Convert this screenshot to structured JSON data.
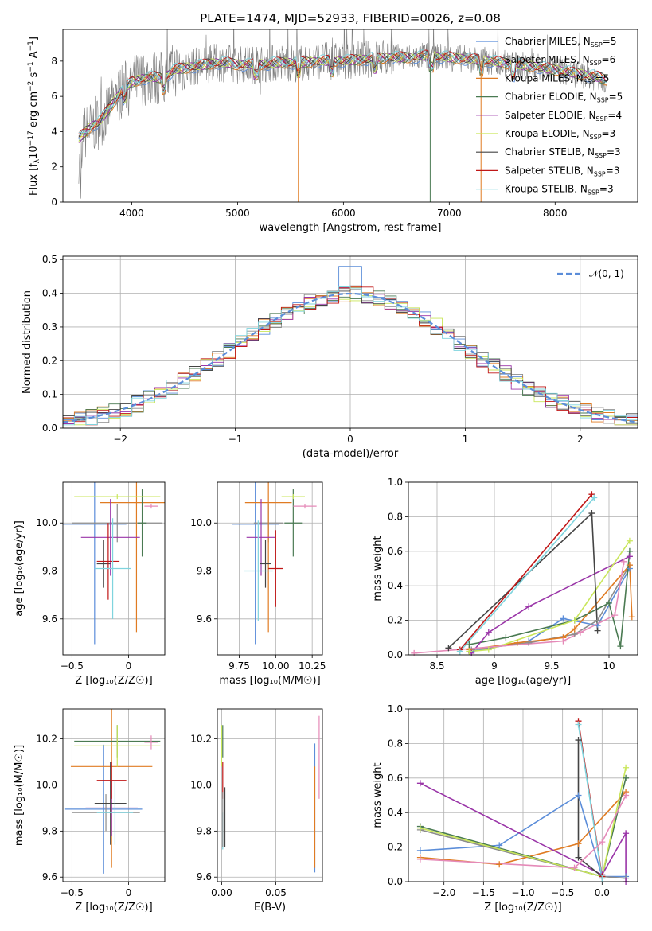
{
  "colors": {
    "Chabrier MILES": "#5b8dd9",
    "Salpeter MILES": "#8c8c8c",
    "Kroupa MILES": "#e07b22",
    "Chabrier ELODIE": "#4a7a52",
    "Salpeter ELODIE": "#9a35a8",
    "Kroupa ELODIE": "#c9e65a",
    "Chabrier STELIB": "#444444",
    "Salpeter STELIB": "#c01717",
    "Kroupa STELIB": "#7fd4de",
    "extra_pink": "#e58ab8",
    "spectrum_gray": "#7f7f7f",
    "gauss": "#5b8dd9"
  },
  "chart_data": [
    {
      "id": "spectrum",
      "type": "line",
      "title": "PLATE=1474, MJD=52933, FIBERID=0026, z=0.08",
      "xlabel": "wavelength [Angstrom, rest frame]",
      "ylabel_parts": [
        "Flux [f",
        "λ",
        "10",
        "−17",
        " erg cm",
        "−2",
        " s",
        "−1",
        " A",
        "−1",
        "]"
      ],
      "xlim": [
        3350,
        8780
      ],
      "ylim": [
        0,
        9.8
      ],
      "xticks": [
        4000,
        5000,
        6000,
        7000,
        8000
      ],
      "yticks": [
        0,
        2,
        4,
        6,
        8
      ],
      "legend": [
        {
          "name": "Chabrier MILES",
          "nssp": "5"
        },
        {
          "name": "Salpeter MILES",
          "nssp": "6"
        },
        {
          "name": "Kroupa MILES",
          "nssp": "5"
        },
        {
          "name": "Chabrier ELODIE",
          "nssp": "5"
        },
        {
          "name": "Salpeter ELODIE",
          "nssp": "4"
        },
        {
          "name": "Kroupa ELODIE",
          "nssp": "3"
        },
        {
          "name": "Chabrier STELIB",
          "nssp": "3"
        },
        {
          "name": "Salpeter STELIB",
          "nssp": "3"
        },
        {
          "name": "Kroupa STELIB",
          "nssp": "3"
        }
      ],
      "legend_nssp_label": "N",
      "legend_nssp_sub": "SSP",
      "model_x": [
        3500,
        3600,
        3700,
        3800,
        3900,
        4000,
        4100,
        4200,
        4300,
        4400,
        4500,
        4600,
        4700,
        4800,
        4900,
        5000,
        5200,
        5400,
        5600,
        5800,
        6000,
        6200,
        6400,
        6600,
        6800,
        7000,
        7200,
        7400,
        7600,
        7800,
        8000,
        8200,
        8400,
        8500
      ],
      "model_y": [
        3.6,
        4.2,
        4.6,
        5.4,
        6.3,
        6.8,
        7.0,
        7.1,
        7.0,
        7.5,
        7.6,
        7.7,
        7.8,
        7.9,
        7.9,
        7.8,
        7.8,
        7.9,
        7.9,
        8.0,
        8.0,
        8.1,
        8.2,
        8.2,
        8.3,
        8.2,
        8.1,
        8.0,
        7.8,
        7.7,
        7.5,
        7.3,
        7.1,
        6.9
      ],
      "dips": [
        3933,
        4300,
        5173,
        5575,
        5890,
        6300,
        6830,
        7300,
        7600
      ],
      "orange_drop": 5575
    },
    {
      "id": "residuals",
      "type": "line",
      "xlabel": "(data-model)/error",
      "ylabel": "Normed distribution",
      "xlim": [
        -2.5,
        2.5
      ],
      "ylim": [
        0,
        0.51
      ],
      "xticks": [
        -2,
        -1,
        0,
        1,
        2
      ],
      "yticks": [
        0.0,
        0.1,
        0.2,
        0.3,
        0.4,
        0.5
      ],
      "legend": "𝒩(0, 1)",
      "grid": true,
      "bin_width": 0.1,
      "peak_value": 0.48
    },
    {
      "id": "age-vs-Z",
      "type": "scatter",
      "xlabel": "Z [log₁₀(Z/Z☉)]",
      "ylabel": "age  [log₁₀(age/yr)]",
      "xlim": [
        -0.58,
        0.32
      ],
      "ylim": [
        9.45,
        10.17
      ],
      "xticks": [
        -0.5,
        0.0
      ],
      "yticks": [
        9.6,
        9.8,
        10.0
      ],
      "grid": true,
      "points": [
        {
          "s": "Chabrier MILES",
          "x": -0.3,
          "xe": 0.28,
          "y": 9.995,
          "ye": 0.5
        },
        {
          "s": "Salpeter MILES",
          "x": -0.1,
          "xe": 0.4,
          "y": 10.0,
          "ye": 0.08
        },
        {
          "s": "Kroupa MILES",
          "x": 0.07,
          "xe": 0.32,
          "y": 10.085,
          "ye": 0.54
        },
        {
          "s": "Chabrier ELODIE",
          "x": 0.12,
          "xe": 0.04,
          "y": 10.0,
          "ye": 0.14
        },
        {
          "s": "Salpeter ELODIE",
          "x": -0.16,
          "xe": 0.26,
          "y": 9.94,
          "ye": 0.16
        },
        {
          "s": "Kroupa ELODIE",
          "x": -0.1,
          "xe": 0.38,
          "y": 10.11,
          "ye": 0.01
        },
        {
          "s": "Chabrier STELIB",
          "x": -0.22,
          "xe": 0.06,
          "y": 9.83,
          "ye": 0.1
        },
        {
          "s": "Salpeter STELIB",
          "x": -0.18,
          "xe": 0.1,
          "y": 9.84,
          "ye": 0.16
        },
        {
          "s": "Kroupa STELIB",
          "x": -0.14,
          "xe": 0.16,
          "y": 9.81,
          "ye": 0.21
        },
        {
          "s": "extra_pink",
          "x": 0.2,
          "xe": 0.06,
          "y": 10.07,
          "ye": 0.01
        }
      ]
    },
    {
      "id": "age-vs-mass",
      "type": "scatter",
      "xlabel": "mass [log₁₀(M/M☉)]",
      "ylabel": "",
      "xlim": [
        9.6,
        10.32
      ],
      "ylim": [
        9.45,
        10.17
      ],
      "xticks": [
        9.75,
        10.0,
        10.25
      ],
      "xticklabels": [
        "9.75",
        "10.00",
        "10.25"
      ],
      "yticks": [
        9.6,
        9.8,
        10.0
      ],
      "grid": true,
      "points": [
        {
          "s": "Chabrier MILES",
          "x": 9.86,
          "xe": 0.16,
          "y": 9.995,
          "ye": 0.5
        },
        {
          "s": "Salpeter MILES",
          "x": 9.95,
          "xe": 0.1,
          "y": 10.0,
          "ye": 0.08
        },
        {
          "s": "Kroupa MILES",
          "x": 9.95,
          "xe": 0.16,
          "y": 10.085,
          "ye": 0.54
        },
        {
          "s": "Chabrier ELODIE",
          "x": 10.12,
          "xe": 0.06,
          "y": 10.0,
          "ye": 0.14
        },
        {
          "s": "Salpeter ELODIE",
          "x": 9.9,
          "xe": 0.1,
          "y": 9.94,
          "ye": 0.16
        },
        {
          "s": "Kroupa ELODIE",
          "x": 10.12,
          "xe": 0.08,
          "y": 10.11,
          "ye": 0.01
        },
        {
          "s": "Chabrier STELIB",
          "x": 9.93,
          "xe": 0.04,
          "y": 9.83,
          "ye": 0.1
        },
        {
          "s": "Salpeter STELIB",
          "x": 10.0,
          "xe": 0.05,
          "y": 9.81,
          "ye": 0.16
        },
        {
          "s": "Kroupa STELIB",
          "x": 9.88,
          "xe": 0.1,
          "y": 9.8,
          "ye": 0.21
        },
        {
          "s": "extra_pink",
          "x": 10.2,
          "xe": 0.08,
          "y": 10.07,
          "ye": 0.01
        }
      ]
    },
    {
      "id": "weight-vs-age",
      "type": "line",
      "xlabel": "age  [log₁₀(age/yr)]",
      "ylabel": "mass weight",
      "xlim": [
        8.25,
        10.25
      ],
      "ylim": [
        0,
        1.0
      ],
      "xticks": [
        8.5,
        9.0,
        9.5,
        10.0
      ],
      "yticks": [
        0.0,
        0.2,
        0.4,
        0.6,
        0.8,
        1.0
      ],
      "grid": true,
      "series": [
        {
          "s": "Chabrier MILES",
          "x": [
            8.8,
            9.3,
            9.6,
            9.9,
            10.18
          ],
          "y": [
            0.02,
            0.08,
            0.21,
            0.17,
            0.5
          ]
        },
        {
          "s": "Salpeter MILES",
          "x": [
            8.8,
            9.3,
            9.7,
            9.9,
            10.18
          ],
          "y": [
            0.03,
            0.07,
            0.12,
            0.2,
            0.52
          ]
        },
        {
          "s": "Kroupa MILES",
          "x": [
            8.78,
            9.2,
            9.6,
            9.7,
            10.18,
            10.2
          ],
          "y": [
            0.03,
            0.07,
            0.1,
            0.15,
            0.52,
            0.22
          ]
        },
        {
          "s": "Chabrier ELODIE",
          "x": [
            8.78,
            9.1,
            9.7,
            10.0,
            10.1,
            10.18
          ],
          "y": [
            0.06,
            0.1,
            0.2,
            0.3,
            0.05,
            0.6
          ]
        },
        {
          "s": "Salpeter ELODIE",
          "x": [
            8.8,
            8.95,
            9.3,
            10.18
          ],
          "y": [
            0.01,
            0.13,
            0.28,
            0.57
          ]
        },
        {
          "s": "Kroupa ELODIE",
          "x": [
            8.78,
            8.95,
            9.7,
            10.18
          ],
          "y": [
            0.02,
            0.03,
            0.2,
            0.66
          ]
        },
        {
          "s": "Chabrier STELIB",
          "x": [
            8.6,
            9.85,
            9.9
          ],
          "y": [
            0.04,
            0.82,
            0.14
          ]
        },
        {
          "s": "Salpeter STELIB",
          "x": [
            8.7,
            9.85
          ],
          "y": [
            0.03,
            0.93
          ]
        },
        {
          "s": "Kroupa STELIB",
          "x": [
            8.7,
            9.87
          ],
          "y": [
            0.02,
            0.91
          ]
        },
        {
          "s": "extra_pink",
          "x": [
            8.3,
            9.6,
            9.75,
            10.05,
            10.13
          ],
          "y": [
            0.01,
            0.08,
            0.13,
            0.23,
            0.54
          ]
        }
      ]
    },
    {
      "id": "mass-vs-Z",
      "type": "scatter",
      "xlabel": "Z [log₁₀(Z/Z☉)]",
      "ylabel": "mass [log₁₀(M/M☉)]",
      "xlim": [
        -0.58,
        0.32
      ],
      "ylim": [
        9.58,
        10.33
      ],
      "xticks": [
        -0.5,
        0.0
      ],
      "yticks": [
        9.6,
        9.8,
        10.0,
        10.2
      ],
      "grid": true,
      "points": [
        {
          "s": "Chabrier MILES",
          "x": -0.22,
          "xe": 0.34,
          "y": 9.895,
          "ye": 0.28
        },
        {
          "s": "Salpeter MILES",
          "x": -0.2,
          "xe": 0.3,
          "y": 9.88,
          "ye": 0.08
        },
        {
          "s": "Kroupa MILES",
          "x": -0.15,
          "xe": 0.36,
          "y": 10.08,
          "ye": 0.44
        },
        {
          "s": "Chabrier ELODIE",
          "x": -0.1,
          "xe": 0.38,
          "y": 10.19,
          "ye": 0.07
        },
        {
          "s": "Salpeter ELODIE",
          "x": -0.15,
          "xe": 0.23,
          "y": 9.9,
          "ye": 0.12
        },
        {
          "s": "Kroupa ELODIE",
          "x": -0.1,
          "xe": 0.38,
          "y": 10.17,
          "ye": 0.09
        },
        {
          "s": "Chabrier STELIB",
          "x": -0.16,
          "xe": 0.14,
          "y": 9.92,
          "ye": 0.18
        },
        {
          "s": "Salpeter STELIB",
          "x": -0.15,
          "xe": 0.13,
          "y": 10.02,
          "ye": 0.08
        },
        {
          "s": "Kroupa STELIB",
          "x": -0.12,
          "xe": 0.16,
          "y": 9.88,
          "ye": 0.14
        },
        {
          "s": "extra_pink",
          "x": 0.2,
          "xe": 0.06,
          "y": 10.185,
          "ye": 0.03
        }
      ]
    },
    {
      "id": "mass-vs-EBV",
      "type": "scatter",
      "xlabel": "E(B-V)",
      "ylabel": "",
      "xlim": [
        -0.004,
        0.093
      ],
      "ylim": [
        9.58,
        10.33
      ],
      "xticks": [
        0.0,
        0.05
      ],
      "xticklabels": [
        "0.00",
        "0.05"
      ],
      "yticks": [
        9.6,
        9.8,
        10.0,
        10.2
      ],
      "grid": true,
      "points": [
        {
          "s": "Kroupa ELODIE",
          "x": 0.0,
          "y": 10.17,
          "ye": 0.09
        },
        {
          "s": "Chabrier ELODIE",
          "x": 0.001,
          "y": 10.19,
          "ye": 0.07
        },
        {
          "s": "Salpeter STELIB",
          "x": 0.001,
          "y": 10.02,
          "ye": 0.08
        },
        {
          "s": "Kroupa STELIB",
          "x": 0.001,
          "y": 9.8,
          "ye": 0.08
        },
        {
          "s": "Salpeter MILES",
          "x": 0.001,
          "y": 9.85,
          "ye": 0.12
        },
        {
          "s": "Chabrier STELIB",
          "x": 0.003,
          "y": 9.86,
          "ye": 0.13
        },
        {
          "s": "Chabrier MILES",
          "x": 0.086,
          "y": 9.9,
          "ye": 0.28
        },
        {
          "s": "Kroupa MILES",
          "x": 0.086,
          "y": 9.86,
          "ye": 0.22
        },
        {
          "s": "extra_pink",
          "x": 0.09,
          "y": 10.12,
          "ye": 0.18
        }
      ]
    },
    {
      "id": "weight-vs-Z",
      "type": "line",
      "xlabel": "Z [log₁₀(Z/Z☉)]",
      "ylabel": "mass weight",
      "xlim": [
        -2.45,
        0.45
      ],
      "ylim": [
        0,
        1.0
      ],
      "xticks": [
        -2.0,
        -1.5,
        -1.0,
        -0.5,
        0.0
      ],
      "xticklabels": [
        "−2.0",
        "−1.5",
        "−1.0",
        "−0.5",
        "0.0"
      ],
      "yticks": [
        0.0,
        0.2,
        0.4,
        0.6,
        0.8,
        1.0
      ],
      "grid": true,
      "series": [
        {
          "s": "Chabrier MILES",
          "x": [
            -2.3,
            -1.3,
            -0.3,
            0.0,
            0.3
          ],
          "y": [
            0.18,
            0.21,
            0.5,
            0.03,
            0.03
          ]
        },
        {
          "s": "Salpeter MILES",
          "x": [
            -2.3,
            0.0,
            0.3
          ],
          "y": [
            0.3,
            0.03,
            0.02
          ]
        },
        {
          "s": "Kroupa MILES",
          "x": [
            -2.3,
            -1.3,
            -0.3,
            0.3
          ],
          "y": [
            0.14,
            0.1,
            0.22,
            0.52
          ]
        },
        {
          "s": "Chabrier ELODIE",
          "x": [
            -2.3,
            0.0,
            0.3
          ],
          "y": [
            0.32,
            0.03,
            0.6
          ]
        },
        {
          "s": "Salpeter ELODIE",
          "x": [
            -2.3,
            0.0,
            0.3,
            0.3
          ],
          "y": [
            0.57,
            0.04,
            0.28,
            0.0
          ]
        },
        {
          "s": "Kroupa ELODIE",
          "x": [
            -2.3,
            0.0,
            0.3
          ],
          "y": [
            0.31,
            0.03,
            0.66
          ]
        },
        {
          "s": "Chabrier STELIB",
          "x": [
            -0.3,
            -0.3,
            0.0
          ],
          "y": [
            0.82,
            0.14,
            0.03
          ]
        },
        {
          "s": "Salpeter STELIB",
          "x": [
            -0.3,
            0.0
          ],
          "y": [
            0.93,
            0.03
          ]
        },
        {
          "s": "Kroupa STELIB",
          "x": [
            -0.3,
            0.0
          ],
          "y": [
            0.91,
            0.02
          ]
        },
        {
          "s": "extra_pink",
          "x": [
            -2.3,
            -0.35,
            0.0,
            0.3
          ],
          "y": [
            0.13,
            0.08,
            0.23,
            0.5
          ]
        }
      ]
    }
  ]
}
